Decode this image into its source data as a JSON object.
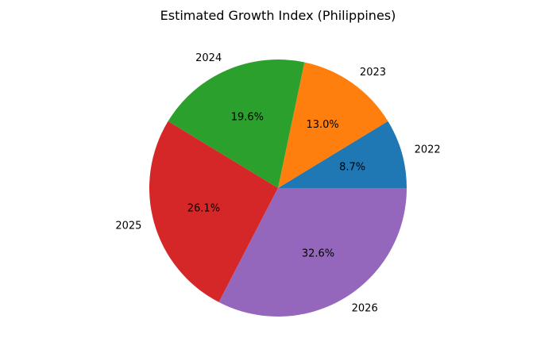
{
  "chart_data": {
    "type": "pie",
    "title": "Estimated Growth Index (Philippines)",
    "categories": [
      "2022",
      "2023",
      "2024",
      "2025",
      "2026"
    ],
    "values": [
      8.7,
      13.0,
      19.6,
      26.1,
      32.6
    ],
    "value_labels": [
      "8.7%",
      "13.0%",
      "19.6%",
      "26.1%",
      "32.6%"
    ],
    "colors": [
      "#1f77b4",
      "#ff7f0e",
      "#2ca02c",
      "#d62728",
      "#9467bd"
    ],
    "start_angle_deg": 0,
    "direction": "counterclockwise",
    "legend": "none"
  }
}
